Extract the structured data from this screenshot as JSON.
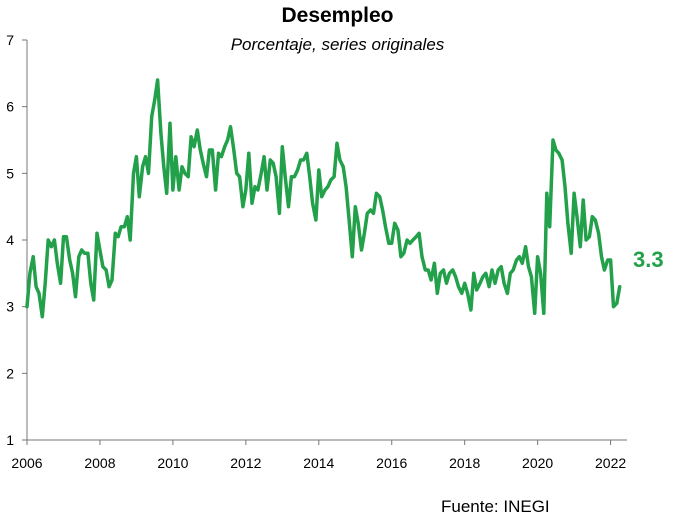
{
  "chart_data": {
    "type": "line",
    "title": "Desempleo",
    "subtitle": "Porcentaje, series originales",
    "source": "Fuente: INEGI",
    "xlabel": "",
    "ylabel": "",
    "xlim": [
      2006,
      2022.45
    ],
    "ylim": [
      1,
      7
    ],
    "y_ticks": [
      1,
      2,
      3,
      4,
      5,
      6,
      7
    ],
    "x_ticks": [
      2006,
      2008,
      2010,
      2012,
      2014,
      2016,
      2018,
      2020,
      2022
    ],
    "grid": false,
    "line_color": "#22a04a",
    "last_value_label": "3.3",
    "series": [
      {
        "values": [
          [
            2006.0,
            3.0
          ],
          [
            2006.08,
            3.5
          ],
          [
            2006.17,
            3.75
          ],
          [
            2006.25,
            3.3
          ],
          [
            2006.33,
            3.2
          ],
          [
            2006.42,
            2.85
          ],
          [
            2006.5,
            3.35
          ],
          [
            2006.58,
            4.0
          ],
          [
            2006.67,
            3.9
          ],
          [
            2006.75,
            4.0
          ],
          [
            2006.83,
            3.65
          ],
          [
            2006.92,
            3.35
          ],
          [
            2007.0,
            4.05
          ],
          [
            2007.08,
            4.05
          ],
          [
            2007.17,
            3.7
          ],
          [
            2007.25,
            3.5
          ],
          [
            2007.33,
            3.15
          ],
          [
            2007.42,
            3.75
          ],
          [
            2007.5,
            3.85
          ],
          [
            2007.58,
            3.8
          ],
          [
            2007.67,
            3.8
          ],
          [
            2007.75,
            3.35
          ],
          [
            2007.83,
            3.1
          ],
          [
            2007.92,
            4.1
          ],
          [
            2008.0,
            3.85
          ],
          [
            2008.08,
            3.6
          ],
          [
            2008.17,
            3.55
          ],
          [
            2008.25,
            3.3
          ],
          [
            2008.33,
            3.4
          ],
          [
            2008.42,
            4.1
          ],
          [
            2008.5,
            4.05
          ],
          [
            2008.58,
            4.2
          ],
          [
            2008.67,
            4.2
          ],
          [
            2008.75,
            4.35
          ],
          [
            2008.83,
            4.0
          ],
          [
            2008.92,
            5.0
          ],
          [
            2009.0,
            5.25
          ],
          [
            2009.08,
            4.65
          ],
          [
            2009.17,
            5.1
          ],
          [
            2009.25,
            5.25
          ],
          [
            2009.33,
            5.0
          ],
          [
            2009.42,
            5.85
          ],
          [
            2009.5,
            6.1
          ],
          [
            2009.58,
            6.4
          ],
          [
            2009.67,
            5.6
          ],
          [
            2009.75,
            5.1
          ],
          [
            2009.83,
            4.7
          ],
          [
            2009.92,
            5.75
          ],
          [
            2010.0,
            4.75
          ],
          [
            2010.08,
            5.25
          ],
          [
            2010.17,
            4.75
          ],
          [
            2010.25,
            5.1
          ],
          [
            2010.33,
            5.0
          ],
          [
            2010.42,
            4.95
          ],
          [
            2010.5,
            5.55
          ],
          [
            2010.58,
            5.4
          ],
          [
            2010.67,
            5.65
          ],
          [
            2010.75,
            5.35
          ],
          [
            2010.83,
            5.15
          ],
          [
            2010.92,
            4.95
          ],
          [
            2011.0,
            5.35
          ],
          [
            2011.08,
            5.35
          ],
          [
            2011.17,
            4.75
          ],
          [
            2011.25,
            5.3
          ],
          [
            2011.33,
            5.25
          ],
          [
            2011.42,
            5.4
          ],
          [
            2011.5,
            5.5
          ],
          [
            2011.58,
            5.7
          ],
          [
            2011.67,
            5.35
          ],
          [
            2011.75,
            5.0
          ],
          [
            2011.83,
            4.95
          ],
          [
            2011.92,
            4.5
          ],
          [
            2012.0,
            4.75
          ],
          [
            2012.08,
            5.3
          ],
          [
            2012.17,
            4.55
          ],
          [
            2012.25,
            4.8
          ],
          [
            2012.33,
            4.75
          ],
          [
            2012.42,
            5.0
          ],
          [
            2012.5,
            5.25
          ],
          [
            2012.58,
            4.75
          ],
          [
            2012.67,
            5.2
          ],
          [
            2012.75,
            5.15
          ],
          [
            2012.83,
            4.95
          ],
          [
            2012.92,
            4.4
          ],
          [
            2013.0,
            5.4
          ],
          [
            2013.08,
            4.95
          ],
          [
            2013.17,
            4.5
          ],
          [
            2013.25,
            4.95
          ],
          [
            2013.33,
            4.95
          ],
          [
            2013.42,
            5.05
          ],
          [
            2013.5,
            5.2
          ],
          [
            2013.58,
            5.2
          ],
          [
            2013.67,
            5.3
          ],
          [
            2013.75,
            4.95
          ],
          [
            2013.83,
            4.55
          ],
          [
            2013.92,
            4.3
          ],
          [
            2014.0,
            5.05
          ],
          [
            2014.08,
            4.65
          ],
          [
            2014.17,
            4.75
          ],
          [
            2014.25,
            4.8
          ],
          [
            2014.33,
            4.9
          ],
          [
            2014.42,
            4.95
          ],
          [
            2014.5,
            5.45
          ],
          [
            2014.58,
            5.2
          ],
          [
            2014.67,
            5.1
          ],
          [
            2014.75,
            4.8
          ],
          [
            2014.83,
            4.3
          ],
          [
            2014.92,
            3.75
          ],
          [
            2015.0,
            4.5
          ],
          [
            2015.08,
            4.25
          ],
          [
            2015.17,
            3.85
          ],
          [
            2015.25,
            4.1
          ],
          [
            2015.33,
            4.4
          ],
          [
            2015.42,
            4.45
          ],
          [
            2015.5,
            4.4
          ],
          [
            2015.58,
            4.7
          ],
          [
            2015.67,
            4.65
          ],
          [
            2015.75,
            4.45
          ],
          [
            2015.83,
            4.2
          ],
          [
            2015.92,
            3.95
          ],
          [
            2016.0,
            3.95
          ],
          [
            2016.08,
            4.25
          ],
          [
            2016.17,
            4.15
          ],
          [
            2016.25,
            3.75
          ],
          [
            2016.33,
            3.8
          ],
          [
            2016.42,
            4.0
          ],
          [
            2016.5,
            3.95
          ],
          [
            2016.58,
            4.0
          ],
          [
            2016.67,
            4.05
          ],
          [
            2016.75,
            4.1
          ],
          [
            2016.83,
            3.75
          ],
          [
            2016.92,
            3.55
          ],
          [
            2017.0,
            3.55
          ],
          [
            2017.08,
            3.4
          ],
          [
            2017.17,
            3.65
          ],
          [
            2017.25,
            3.2
          ],
          [
            2017.33,
            3.5
          ],
          [
            2017.42,
            3.55
          ],
          [
            2017.5,
            3.35
          ],
          [
            2017.58,
            3.5
          ],
          [
            2017.67,
            3.55
          ],
          [
            2017.75,
            3.45
          ],
          [
            2017.83,
            3.3
          ],
          [
            2017.92,
            3.2
          ],
          [
            2018.0,
            3.35
          ],
          [
            2018.08,
            3.2
          ],
          [
            2018.17,
            2.95
          ],
          [
            2018.25,
            3.5
          ],
          [
            2018.33,
            3.25
          ],
          [
            2018.42,
            3.35
          ],
          [
            2018.5,
            3.45
          ],
          [
            2018.58,
            3.5
          ],
          [
            2018.67,
            3.3
          ],
          [
            2018.75,
            3.55
          ],
          [
            2018.83,
            3.35
          ],
          [
            2018.92,
            3.55
          ],
          [
            2019.0,
            3.6
          ],
          [
            2019.08,
            3.35
          ],
          [
            2019.17,
            3.2
          ],
          [
            2019.25,
            3.5
          ],
          [
            2019.33,
            3.55
          ],
          [
            2019.42,
            3.7
          ],
          [
            2019.5,
            3.75
          ],
          [
            2019.58,
            3.65
          ],
          [
            2019.67,
            3.9
          ],
          [
            2019.75,
            3.6
          ],
          [
            2019.83,
            3.45
          ],
          [
            2019.92,
            2.9
          ],
          [
            2020.0,
            3.75
          ],
          [
            2020.08,
            3.5
          ],
          [
            2020.17,
            2.9
          ],
          [
            2020.25,
            4.7
          ],
          [
            2020.33,
            4.2
          ],
          [
            2020.42,
            5.5
          ],
          [
            2020.5,
            5.35
          ],
          [
            2020.58,
            5.3
          ],
          [
            2020.67,
            5.2
          ],
          [
            2020.75,
            4.8
          ],
          [
            2020.83,
            4.25
          ],
          [
            2020.92,
            3.8
          ],
          [
            2021.0,
            4.7
          ],
          [
            2021.08,
            4.35
          ],
          [
            2021.17,
            3.9
          ],
          [
            2021.25,
            4.6
          ],
          [
            2021.33,
            4.0
          ],
          [
            2021.42,
            4.05
          ],
          [
            2021.5,
            4.35
          ],
          [
            2021.58,
            4.3
          ],
          [
            2021.67,
            4.1
          ],
          [
            2021.75,
            3.75
          ],
          [
            2021.83,
            3.55
          ],
          [
            2021.92,
            3.7
          ],
          [
            2022.0,
            3.7
          ],
          [
            2022.08,
            3.0
          ],
          [
            2022.17,
            3.05
          ],
          [
            2022.25,
            3.3
          ]
        ]
      }
    ]
  }
}
